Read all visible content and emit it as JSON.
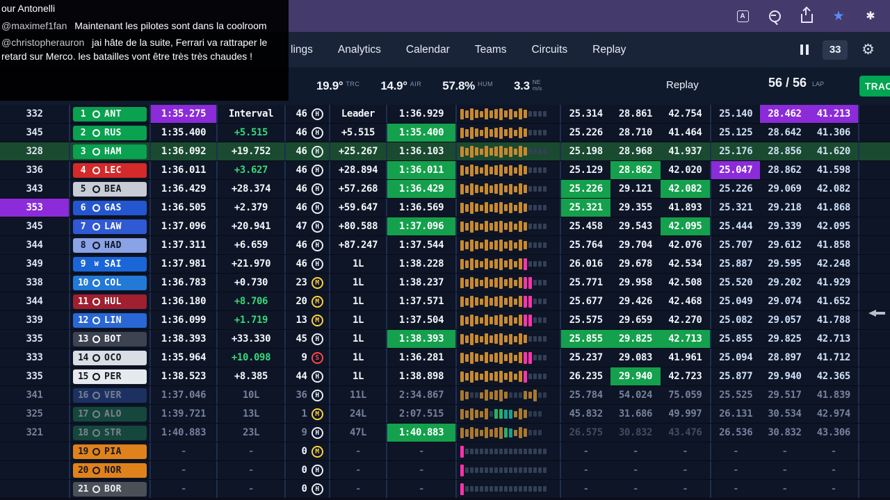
{
  "colors": {
    "purple": "#8b2bd9",
    "green_bg": "#14a04c",
    "green_text": "#35d979",
    "track_button_green": "#00a651",
    "star_blue": "#5b8cf5"
  },
  "chat": {
    "lines": [
      {
        "user": "",
        "text": "our Antonelli"
      },
      {
        "user": "@maximef1fan",
        "text": "Maintenant les pilotes sont dans la coolroom"
      },
      {
        "user": "@christopherauron",
        "text": "jai hâte de la suite, Ferrari va rattraper le retard sur Merco. les batailles vont être très très chaudes !"
      }
    ]
  },
  "nav": {
    "items": [
      "lings",
      "Analytics",
      "Calendar",
      "Teams",
      "Circuits",
      "Replay"
    ],
    "pause_count": "33"
  },
  "status": {
    "track_temp": "19.9°",
    "track_temp_label": "TRC",
    "air_temp": "14.9°",
    "air_temp_label": "AIR",
    "humidity": "57.8%",
    "humidity_label": "HUM",
    "wind_speed": "3.3",
    "wind_dir": "NE",
    "wind_unit": "m/s",
    "mode_label": "Replay",
    "lap_display": "56 / 56",
    "lap_label": "LAP",
    "track_button": "TRAC"
  },
  "table": {
    "rows": [
      {
        "speed": "332",
        "pos": "1",
        "code": "ANT",
        "badge": {
          "bg": "#0aa150",
          "fg": "#ffffff",
          "logo": ""
        },
        "last": "1:35.275",
        "gap": "Interval",
        "laps": "46",
        "compound": "H",
        "leader": "Leader",
        "best": "1:36.929",
        "bars": "oooooooooooooodddd",
        "s": [
          "25.314",
          "28.861",
          "42.754"
        ],
        "t": [
          "25.140",
          "28.462",
          "41.213"
        ],
        "fx": {
          "last": "P",
          "t2": "P",
          "t3": "P"
        }
      },
      {
        "speed": "345",
        "pos": "2",
        "code": "RUS",
        "badge": {
          "bg": "#0aa150",
          "fg": "#ffffff",
          "logo": ""
        },
        "last": "1:35.400",
        "gap": "+5.515",
        "laps": "46",
        "compound": "H",
        "leader": "+5.515",
        "best": "1:35.400",
        "bars": "oooooooooooooodddd",
        "s": [
          "25.226",
          "28.710",
          "41.464"
        ],
        "t": [
          "25.125",
          "28.642",
          "41.306"
        ],
        "fx": {
          "gap": "g",
          "best": "G"
        }
      },
      {
        "speed": "328",
        "pos": "3",
        "code": "HAM",
        "badge": {
          "bg": "#0aa150",
          "fg": "#ffffff",
          "logo": ""
        },
        "last": "1:36.092",
        "gap": "+19.752",
        "laps": "46",
        "compound": "H",
        "leader": "+25.267",
        "best": "1:36.103",
        "bars": "oooooooooooooodddd",
        "s": [
          "25.198",
          "28.968",
          "41.937"
        ],
        "t": [
          "25.176",
          "28.856",
          "41.620"
        ],
        "selected": true
      },
      {
        "speed": "336",
        "pos": "4",
        "code": "LEC",
        "badge": {
          "bg": "#d42a2a",
          "fg": "#ffffff",
          "logo": ""
        },
        "last": "1:36.011",
        "gap": "+3.627",
        "laps": "46",
        "compound": "H",
        "leader": "+28.894",
        "best": "1:36.011",
        "bars": "oooooooooooooodddd",
        "s": [
          "25.129",
          "28.862",
          "42.020"
        ],
        "t": [
          "25.047",
          "28.862",
          "41.598"
        ],
        "fx": {
          "gap": "g",
          "best": "G",
          "s2": "G",
          "t1": "P"
        }
      },
      {
        "speed": "343",
        "pos": "5",
        "code": "BEA",
        "badge": {
          "bg": "#c7ccd6",
          "fg": "#12151c",
          "logo": ""
        },
        "last": "1:36.429",
        "gap": "+28.374",
        "laps": "46",
        "compound": "H",
        "leader": "+57.268",
        "best": "1:36.429",
        "bars": "oooooooooooooodddd",
        "s": [
          "25.226",
          "29.121",
          "42.082"
        ],
        "t": [
          "25.226",
          "29.069",
          "42.082"
        ],
        "fx": {
          "best": "G",
          "s1": "G",
          "s3": "G"
        }
      },
      {
        "speed": "353",
        "pos": "6",
        "code": "GAS",
        "badge": {
          "bg": "#2456cf",
          "fg": "#ffffff",
          "logo": ""
        },
        "last": "1:36.505",
        "gap": "+2.379",
        "laps": "46",
        "compound": "H",
        "leader": "+59.647",
        "best": "1:36.569",
        "bars": "oooooooooooooodddd",
        "s": [
          "25.321",
          "29.355",
          "41.893"
        ],
        "t": [
          "25.321",
          "29.218",
          "41.868"
        ],
        "fx": {
          "speed": "P",
          "s1": "G"
        }
      },
      {
        "speed": "345",
        "pos": "7",
        "code": "LAW",
        "badge": {
          "bg": "#3059d4",
          "fg": "#ffffff",
          "logo": ""
        },
        "last": "1:37.096",
        "gap": "+20.941",
        "laps": "47",
        "compound": "H",
        "leader": "+80.588",
        "best": "1:37.096",
        "bars": "oooooooooooooodddd",
        "s": [
          "25.458",
          "29.543",
          "42.095"
        ],
        "t": [
          "25.444",
          "29.339",
          "42.095"
        ],
        "fx": {
          "best": "G",
          "s3": "G"
        }
      },
      {
        "speed": "344",
        "pos": "8",
        "code": "HAD",
        "badge": {
          "bg": "#8aa2e6",
          "fg": "#101523",
          "logo": ""
        },
        "last": "1:37.311",
        "gap": "+6.659",
        "laps": "46",
        "compound": "H",
        "leader": "+87.247",
        "best": "1:37.544",
        "bars": "oooooooooooooodddd",
        "s": [
          "25.764",
          "29.704",
          "42.076"
        ],
        "t": [
          "25.707",
          "29.612",
          "41.858"
        ]
      },
      {
        "speed": "349",
        "pos": "9",
        "code": "SAI",
        "badge": {
          "bg": "#1a66d9",
          "fg": "#ffffff",
          "logo": "W"
        },
        "last": "1:37.981",
        "gap": "+21.970",
        "laps": "46",
        "compound": "H",
        "leader": "1L",
        "best": "1:38.228",
        "bars": "ooooooooooooopdddd",
        "s": [
          "26.016",
          "29.678",
          "42.534"
        ],
        "t": [
          "25.887",
          "29.595",
          "42.248"
        ]
      },
      {
        "speed": "338",
        "pos": "10",
        "code": "COL",
        "badge": {
          "bg": "#2379d6",
          "fg": "#ffffff",
          "logo": ""
        },
        "last": "1:36.783",
        "gap": "+0.730",
        "laps": "23",
        "compound": "M",
        "leader": "1L",
        "best": "1:38.237",
        "bars": "oooooooooooooppddd",
        "s": [
          "25.771",
          "29.958",
          "42.508"
        ],
        "t": [
          "25.520",
          "29.202",
          "41.929"
        ]
      },
      {
        "speed": "344",
        "pos": "11",
        "code": "HUL",
        "badge": {
          "bg": "#a01f30",
          "fg": "#ffffff",
          "logo": ""
        },
        "last": "1:36.180",
        "gap": "+8.706",
        "laps": "20",
        "compound": "M",
        "leader": "1L",
        "best": "1:37.571",
        "bars": "oooooooooooooppddd",
        "s": [
          "25.677",
          "29.426",
          "42.468"
        ],
        "t": [
          "25.049",
          "29.074",
          "41.652"
        ],
        "fx": {
          "gap": "g"
        }
      },
      {
        "speed": "339",
        "pos": "12",
        "code": "LIN",
        "badge": {
          "bg": "#2a67d6",
          "fg": "#ffffff",
          "logo": ""
        },
        "last": "1:36.099",
        "gap": "+1.719",
        "laps": "13",
        "compound": "M",
        "leader": "1L",
        "best": "1:37.504",
        "bars": "oooooooooooooppddd",
        "s": [
          "25.575",
          "29.659",
          "42.270"
        ],
        "t": [
          "25.082",
          "29.057",
          "41.788"
        ],
        "fx": {
          "gap": "g"
        }
      },
      {
        "speed": "335",
        "pos": "13",
        "code": "BOT",
        "badge": {
          "bg": "#3d4350",
          "fg": "#ffffff",
          "logo": ""
        },
        "last": "1:38.393",
        "gap": "+33.330",
        "laps": "45",
        "compound": "H",
        "leader": "1L",
        "best": "1:38.393",
        "bars": "oooooooooooooodddd",
        "s": [
          "25.855",
          "29.825",
          "42.713"
        ],
        "t": [
          "25.855",
          "29.825",
          "42.713"
        ],
        "fx": {
          "best": "G",
          "s1": "G",
          "s2": "G",
          "s3": "G"
        }
      },
      {
        "speed": "333",
        "pos": "14",
        "code": "OCO",
        "badge": {
          "bg": "#d9dde4",
          "fg": "#12151c",
          "logo": ""
        },
        "last": "1:35.964",
        "gap": "+10.098",
        "laps": "9",
        "compound": "S",
        "leader": "1L",
        "best": "1:36.281",
        "bars": "oooooooooooooppddd",
        "s": [
          "25.237",
          "29.083",
          "41.961"
        ],
        "t": [
          "25.094",
          "28.897",
          "41.712"
        ],
        "fx": {
          "gap": "g"
        }
      },
      {
        "speed": "335",
        "pos": "15",
        "code": "PER",
        "badge": {
          "bg": "#e6e9ee",
          "fg": "#12151c",
          "logo": ""
        },
        "last": "1:38.523",
        "gap": "+8.385",
        "laps": "44",
        "compound": "H",
        "leader": "1L",
        "best": "1:38.898",
        "bars": "ooooooooooooopdddd",
        "s": [
          "26.235",
          "29.940",
          "42.723"
        ],
        "t": [
          "25.877",
          "29.940",
          "42.365"
        ],
        "fx": {
          "s2": "G"
        }
      },
      {
        "speed": "341",
        "pos": "16",
        "code": "VER",
        "badge": {
          "bg": "#2b4c9e",
          "fg": "#e2e8f2",
          "logo": ""
        },
        "last": "1:37.046",
        "gap": "10L",
        "laps": "36",
        "compound": "H",
        "leader": "11L",
        "best": "2:34.867",
        "bars": "ooddoooooodddooodd",
        "s": [
          "25.784",
          "54.024",
          "75.059"
        ],
        "t": [
          "25.525",
          "29.517",
          "41.839"
        ],
        "dim": true
      },
      {
        "speed": "325",
        "pos": "17",
        "code": "ALO",
        "badge": {
          "bg": "#1d7a52",
          "fg": "#e8eef4",
          "logo": ""
        },
        "last": "1:39.721",
        "gap": "13L",
        "laps": "1",
        "compound": "M",
        "leader": "24L",
        "best": "2:07.515",
        "bars": "oooooodggttoooddd",
        "s": [
          "45.832",
          "31.686",
          "49.997"
        ],
        "t": [
          "26.131",
          "30.534",
          "42.974"
        ],
        "dim": true
      },
      {
        "speed": "321",
        "pos": "18",
        "code": "STR",
        "badge": {
          "bg": "#1d7a52",
          "fg": "#e8eef4",
          "logo": ""
        },
        "last": "1:40.883",
        "gap": "23L",
        "laps": "9",
        "compound": "H",
        "leader": "47L",
        "best": "1:40.883",
        "bars": "ooooooooogtoooddd",
        "s": [
          "26.575",
          "30.832",
          "43.476"
        ],
        "t": [
          "26.536",
          "30.832",
          "43.306"
        ],
        "dim": true,
        "fx": {
          "best": "G",
          "s1": "f",
          "s2": "f",
          "s3": "f"
        }
      },
      {
        "speed": "",
        "pos": "19",
        "code": "PIA",
        "badge": {
          "bg": "#e0821c",
          "fg": "#16191f",
          "logo": ""
        },
        "last": "-",
        "gap": "-",
        "laps": "0",
        "compound": "M",
        "leader": "-",
        "best": "-",
        "bars": "pddddddddddddddddd",
        "s": [
          "-",
          "-",
          "-"
        ],
        "t": [
          "-",
          "-",
          "-"
        ]
      },
      {
        "speed": "",
        "pos": "20",
        "code": "NOR",
        "badge": {
          "bg": "#e0821c",
          "fg": "#16191f",
          "logo": ""
        },
        "last": "-",
        "gap": "-",
        "laps": "0",
        "compound": "H",
        "leader": "-",
        "best": "-",
        "bars": "pddddddddddddddddd",
        "s": [
          "-",
          "-",
          "-"
        ],
        "t": [
          "-",
          "-",
          "-"
        ]
      },
      {
        "speed": "",
        "pos": "21",
        "code": "BOR",
        "badge": {
          "bg": "#4b5058",
          "fg": "#e8eef4",
          "logo": ""
        },
        "last": "-",
        "gap": "-",
        "laps": "0",
        "compound": "H",
        "leader": "-",
        "best": "-",
        "bars": "pddddddddddddddddd",
        "s": [
          "-",
          "-",
          "-"
        ],
        "t": [
          "-",
          "-",
          "-"
        ]
      }
    ]
  }
}
